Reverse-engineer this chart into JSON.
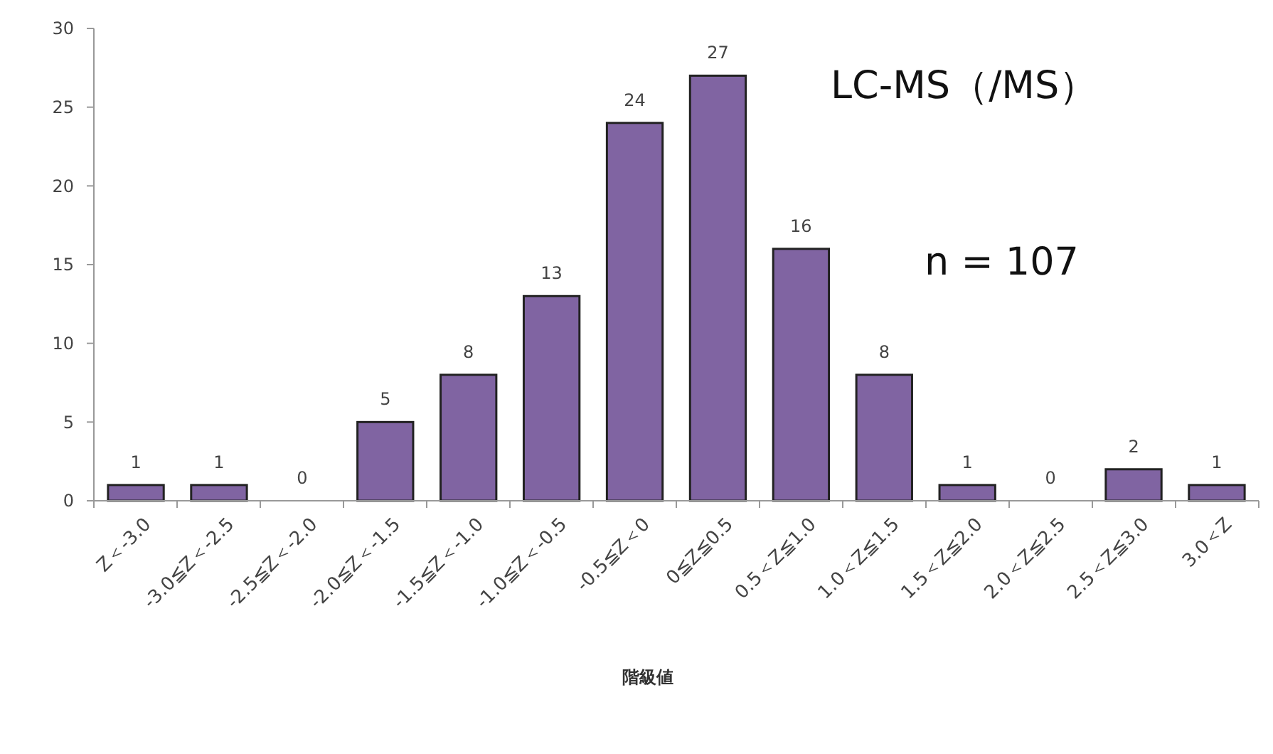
{
  "chart_data": {
    "type": "bar",
    "xlabel": "階級値",
    "categories": [
      "Z＜-3.0",
      "-3.0≦Z＜-2.5",
      "-2.5≦Z＜-2.0",
      "-2.0≦Z＜-1.5",
      "-1.5≦Z＜-1.0",
      "-1.0≦Z＜-0.5",
      "-0.5≦Z＜0",
      "0≦Z≦0.5",
      "0.5＜Z≦1.0",
      "1.0＜Z≦1.5",
      "1.5＜Z≦2.0",
      "2.0＜Z≦2.5",
      "2.5＜Z≦3.0",
      "3.0＜Z"
    ],
    "values": [
      1,
      1,
      0,
      5,
      8,
      13,
      24,
      27,
      16,
      8,
      1,
      0,
      2,
      1
    ],
    "color": "#8064a2",
    "data_labels": true,
    "grid": false,
    "ylim": [
      0,
      30
    ],
    "yticks": [
      0,
      5,
      10,
      15,
      20,
      25,
      30
    ],
    "annotations": [
      "LC-MS（/MS）",
      "n = 107"
    ]
  }
}
